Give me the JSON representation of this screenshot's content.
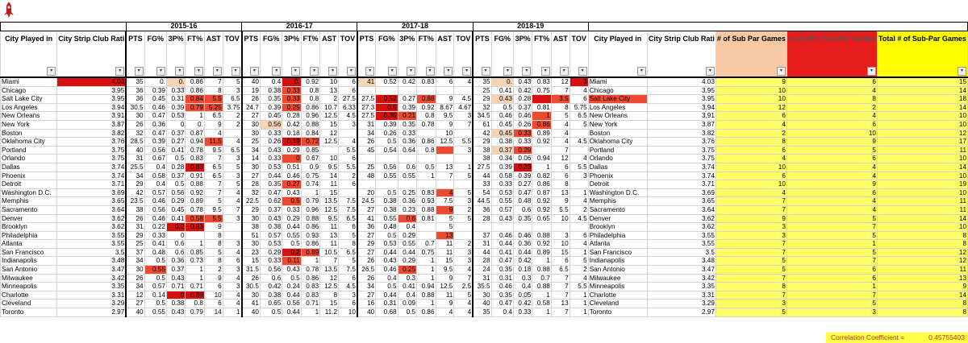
{
  "logo": {
    "icon": "rockets-logo-icon",
    "color": "#c4161c"
  },
  "seasons": [
    "2015-16",
    "2016-17",
    "2017-18",
    "2018-19"
  ],
  "headers": {
    "city": "City Played in",
    "strip": "City Strip Club Rati",
    "pts": "PTS",
    "fg": "FG%",
    "p3": "3P%",
    "ft": "FT%",
    "ast": "AST",
    "tov": "TOV",
    "city2": "City Played in",
    "strip2": "City Strip Club Rati",
    "subpar": "# of Sub Par Games",
    "pct": "% of 45% Sub-Par Games",
    "total": "Total # of Sub-Par Games"
  },
  "colors": {
    "h0": "#ffffff",
    "h1": "#f7d4b4",
    "h2": "#ee4a32",
    "h3": "#d80f0f",
    "yellow": "#ffff00",
    "peach": "#f7c9a4"
  },
  "rows": [
    [
      "Miami",
      "4.03",
      "35",
      "0.",
      "0.",
      "0.86",
      "7",
      "5",
      "40",
      "0.4",
      "0.",
      "0.92",
      "10",
      "6",
      "41",
      "0.52",
      "0.42",
      "0.83",
      "6",
      "4",
      "35",
      "0.",
      "0.43",
      "0.83",
      "12",
      "3",
      "Miami",
      "4.03",
      "9",
      "6",
      "15"
    ],
    [
      "Chicago",
      "3.95",
      "36",
      "0.39",
      "0.33",
      "0.86",
      "8",
      "3",
      "19",
      "0.38",
      "0.33",
      "0.8",
      "13",
      "6",
      "",
      "",
      "",
      "",
      "",
      "",
      "25",
      "0.41",
      "0.42",
      "0.75",
      "7",
      "4",
      "Chicago",
      "3.95",
      "10",
      "4",
      "14"
    ],
    [
      "Salt Lake City",
      "3.95",
      "36",
      "0.45",
      "0.31",
      "0.84",
      "5.5",
      "6.5",
      "26",
      "0.35",
      "0.33",
      "0.8",
      "2",
      "27.5",
      "27.5",
      "0.52",
      "0.27",
      "0.88",
      "9",
      "4.5",
      "29",
      "0.43",
      "0.28",
      "",
      "3.5",
      "6",
      "Salt Lake City",
      "3.95",
      "10",
      "8",
      "18"
    ],
    [
      "Los Angeles",
      "3.94",
      "30.5",
      "0.46",
      "0.39",
      "0.79",
      "5.25",
      "3.75",
      "24.7",
      "0.39",
      "0.25",
      "0.86",
      "10.7",
      "6.33",
      "27.3",
      "0.5",
      "0.39",
      "0.92",
      "8.67",
      "4.67",
      "32",
      "0.5",
      "0.37",
      "0.81",
      "8",
      "5.75",
      "Los Angeles",
      "3.94",
      "12",
      "2",
      "14"
    ],
    [
      "New Orleans",
      "3.91",
      "30",
      "0.47",
      "0.53",
      "1",
      "6.5",
      "2",
      "27",
      "0.45",
      "0.28",
      "0.96",
      "12.5",
      "4.5",
      "27.5",
      "0.35",
      "0.21",
      "0.8",
      "9.5",
      "3",
      "34.5",
      "0.46",
      "0.46",
      "1",
      "5",
      "6.5",
      "New Orleans",
      "3.91",
      "6",
      "4",
      "10"
    ],
    [
      "New York",
      "3.87",
      "26",
      "0.36",
      "0",
      "0.",
      "9",
      "2",
      "30",
      "0.56",
      "0.42",
      "0.88",
      "15",
      "3",
      "31",
      "0.39",
      "0.35",
      "0.78",
      "9",
      "7",
      "61",
      "0.45",
      "0.26",
      "0.86",
      "4",
      "5",
      "New York",
      "3.87",
      "4",
      "6",
      "10"
    ],
    [
      "Boston",
      "3.82",
      "32",
      "0.47",
      "0.37",
      "0.87",
      "4",
      "",
      "30",
      "0.33",
      "0.18",
      "0.84",
      "12",
      "",
      "34",
      "0.26",
      "0.33",
      "",
      "10",
      "",
      "42",
      "0.45",
      "0.33",
      "0.89",
      "4",
      "",
      "Boston",
      "3.82",
      "2",
      "10",
      "12"
    ],
    [
      "Oklahoma City",
      "3.76",
      "28.5",
      "0.39",
      "0.27",
      "0.94",
      "11.5",
      "4",
      "25",
      "0.26",
      "0.19",
      "0.72",
      "12.5",
      "4",
      "26",
      "0.5",
      "0.36",
      "0.86",
      "12.5",
      "5.5",
      "29",
      "0.38",
      "0.33",
      "0.92",
      "4",
      "4.5",
      "Oklahoma City",
      "3.76",
      "8",
      "9",
      "17"
    ],
    [
      "Portland",
      "3.75",
      "40",
      "0.56",
      "0.41",
      "0.78",
      "9.5",
      "6.5",
      "34",
      "0.43",
      "0.29",
      "0.85",
      "",
      "5.5",
      "45",
      "0.54",
      "0.64",
      "0.8",
      "",
      "3",
      "38",
      "0.37",
      "0.29",
      "",
      "7",
      "",
      "Portland",
      "3.75",
      "6",
      "5",
      "11"
    ],
    [
      "Orlando",
      "3.75",
      "31",
      "0.67",
      "0.5",
      "0.83",
      "7",
      "3",
      "14",
      "0.33",
      "0",
      "0.67",
      "10",
      "6",
      "",
      "",
      "",
      "",
      "",
      "",
      "38",
      "0.34",
      "0.06",
      "0.94",
      "12",
      "4",
      "Orlando",
      "3.75",
      "4",
      "6",
      "10"
    ],
    [
      "Dallas",
      "3.74",
      "25.5",
      "0.4",
      "0.28",
      "0.83",
      "6.5",
      "5",
      "30",
      "0.53",
      "0.51",
      "0.9",
      "9.5",
      "5.5",
      "25",
      "0.56",
      "0.6",
      "0.5",
      "13",
      "1",
      "27.5",
      "0.39",
      "0.23",
      "1",
      "6",
      "5.5",
      "Dallas",
      "3.74",
      "10",
      "4",
      "14"
    ],
    [
      "Phoenix",
      "3.74",
      "34",
      "0.58",
      "0.37",
      "0.91",
      "6.5",
      "3",
      "27",
      "0.44",
      "0.46",
      "0.75",
      "14",
      "2",
      "48",
      "0.55",
      "0.55",
      "1",
      "7",
      "5",
      "44",
      "0.58",
      "0.39",
      "0.82",
      "6",
      "3",
      "Phoenix",
      "3.74",
      "6",
      "4",
      "10"
    ],
    [
      "Detroit",
      "3.71",
      "29",
      "0.4",
      "0.5",
      "0.88",
      "7",
      "5",
      "28",
      "0.35",
      "0.27",
      "0.74",
      "11",
      "6",
      "",
      "",
      "",
      "",
      "",
      "",
      "33",
      "0.33",
      "0.27",
      "0.86",
      "8",
      "",
      "Detroit",
      "3.71",
      "10",
      "9",
      "19"
    ],
    [
      "Washington D.C.",
      "3.69",
      "42",
      "0.57",
      "0.56",
      "0.92",
      "7",
      "4",
      "32",
      "0.47",
      "0.43",
      "1",
      "15",
      "",
      "20",
      "0.5",
      "0.25",
      "0.83",
      "4",
      "5",
      "54",
      "0.53",
      "0.47",
      "0.87",
      "13",
      "1",
      "Washington D.C.",
      "3.69",
      "4",
      "6",
      "10"
    ],
    [
      "Memphis",
      "3.65",
      "23.5",
      "0.46",
      "0.29",
      "0.89",
      "5",
      "4",
      "22.5",
      "0.62",
      "0.5",
      "0.79",
      "13.5",
      "7.5",
      "24.5",
      "0.38",
      "0.36",
      "0.93",
      "7.5",
      "3",
      "44.5",
      "0.55",
      "0.48",
      "0.92",
      "9",
      "4",
      "Memphis",
      "3.65",
      "7",
      "4",
      "11"
    ],
    [
      "Sacramento",
      "3.64",
      "38",
      "0.56",
      "0.45",
      "0.78",
      "9.5",
      "7",
      "29",
      "0.37",
      "0.33",
      "0.96",
      "12.5",
      "7.5",
      "27",
      "0.38",
      "0.23",
      "0.88",
      "9",
      "2",
      "36",
      "0.57",
      "0.6",
      "0.92",
      "5.5",
      "2",
      "Sacramento",
      "3.64",
      "7",
      "4",
      "11"
    ],
    [
      "Denver",
      "3.62",
      "26",
      "0.46",
      "0.41",
      "0.58",
      "5.5",
      "3",
      "30",
      "0.43",
      "0.29",
      "0.88",
      "9.5",
      "6.5",
      "41",
      "0.55",
      "0.6",
      "0.81",
      "5",
      "5",
      "28",
      "0.43",
      "0.35",
      "0.65",
      "10",
      "4.5",
      "Denver",
      "3.62",
      "9",
      "5",
      "14"
    ],
    [
      "Brooklyn",
      "3.62",
      "31",
      "0.22",
      "0.2",
      "0.83",
      "9",
      "",
      "38",
      "0.38",
      "0.44",
      "0.86",
      "11",
      "6",
      "36",
      "0.48",
      "0.4",
      "",
      "5",
      "",
      "",
      "",
      "",
      "",
      "",
      "",
      "Brooklyn",
      "3.62",
      "3",
      "7",
      "10"
    ],
    [
      "Philadelphia",
      "3.55",
      "29",
      "0.33",
      "0",
      "",
      "8",
      "",
      "51",
      "0.57",
      "0.55",
      "0.93",
      "13",
      "5",
      "27",
      "0.5",
      "0.29",
      "",
      "13",
      "",
      "37",
      "0.46",
      "0.46",
      "0.88",
      "3",
      "6",
      "Philadelphia",
      "3.55",
      "3",
      "5",
      "8"
    ],
    [
      "Atlanta",
      "3.55",
      "25",
      "0.41",
      "0.6",
      "1",
      "8",
      "3",
      "30",
      "0.53",
      "0.5",
      "0.86",
      "11",
      "8",
      "29",
      "0.53",
      "0.55",
      "0.7",
      "11",
      "2",
      "31",
      "0.44",
      "0.36",
      "0.92",
      "10",
      "4",
      "Atlanta",
      "3.55",
      "7",
      "1",
      "8"
    ],
    [
      "San Francisco",
      "3.5",
      "37",
      "0.48",
      "0.6",
      "0.85",
      "5",
      "4",
      "23",
      "0.29",
      "0.2",
      "0.89",
      "10.5",
      "6.5",
      "27",
      "0.44",
      "0.44",
      "0.75",
      "11",
      "3",
      "44",
      "0.41",
      "0.44",
      "0.89",
      "15",
      "1",
      "San Francisco",
      "3.5",
      "7",
      "5",
      "12"
    ],
    [
      "Indianapolis",
      "3.48",
      "34",
      "0.5",
      "0.36",
      "0.73",
      "8",
      "6",
      "15",
      "0.33",
      "0.11",
      "1",
      "7",
      "5",
      "26",
      "0.43",
      "0.29",
      "1",
      "15",
      "3",
      "28",
      "0.47",
      "0.42",
      "1",
      "6",
      "5",
      "Indianapolis",
      "3.48",
      "5",
      "7",
      "12"
    ],
    [
      "San Antonio",
      "3.47",
      "30",
      "0.55",
      "0.37",
      "1",
      "2",
      "3",
      "31.5",
      "0.56",
      "0.43",
      "0.78",
      "13.5",
      "7.5",
      "26.5",
      "0.46",
      "0.25",
      "1",
      "9.5",
      "4",
      "24",
      "0.35",
      "0.18",
      "0.88",
      "6.5",
      "2",
      "San Antonio",
      "3.47",
      "5",
      "6",
      "11"
    ],
    [
      "Milwaukee",
      "3.42",
      "26",
      "0.5",
      "0.43",
      "1",
      "9",
      "4",
      "26",
      "0.6",
      "0.5",
      "0.86",
      "12",
      "6",
      "26",
      "0.4",
      "0.3",
      "1",
      "9",
      "7",
      "31",
      "0.31",
      "0.3",
      "0.7",
      "7",
      "4",
      "Milwaukee",
      "3.42",
      "7",
      "6",
      "13"
    ],
    [
      "Minneapolis",
      "3.35",
      "34",
      "0.57",
      "0.71",
      "0.71",
      "6",
      "3",
      "30.5",
      "0.42",
      "0.24",
      "0.83",
      "12.5",
      "4.5",
      "34",
      "0.5",
      "0.41",
      "0.94",
      "12.5",
      "2.5",
      "35.5",
      "0.46",
      "0.4",
      "0.88",
      "7",
      "5.5",
      "Minneapolis",
      "3.35",
      "8",
      "1",
      "9"
    ],
    [
      "Charlotte",
      "3.31",
      "12",
      "0.14",
      "0",
      "0.89",
      "10",
      "4",
      "30",
      "0.38",
      "0.44",
      "0.83",
      "8",
      "3",
      "27",
      "0.44",
      "0.4",
      "0.88",
      "11",
      "5",
      "30",
      "0.35",
      "0.05",
      "1",
      "7",
      "1",
      "Charlotte",
      "3.31",
      "7",
      "7",
      "14"
    ],
    [
      "Cleveland",
      "3.29",
      "27",
      "0.5",
      "0.38",
      "0.8",
      "6",
      "4",
      "41",
      "0.65",
      "0.56",
      "0.71",
      "15",
      "6",
      "16",
      "0.31",
      "0.09",
      "1",
      "9",
      "4",
      "40",
      "0.47",
      "0.42",
      "0.58",
      "13",
      "1",
      "Cleveland",
      "3.29",
      "3",
      "5",
      "8"
    ],
    [
      "Toronto",
      "2.97",
      "40",
      "0.55",
      "0.43",
      "0.79",
      "14",
      "1",
      "40",
      "0.5",
      "0.44",
      "1",
      "11.2",
      "10",
      "40",
      "0.68",
      "0.5",
      "0.86",
      "4",
      "4",
      "35",
      "0.4",
      "0.33",
      "1",
      "7",
      "1",
      "Toronto",
      "2.97",
      "5",
      "3",
      "8"
    ]
  ],
  "heat": [
    "0300100000300010000001000300000",
    "0000000000200000000000000000000",
    "0000022000200003020001032020000",
    "0000022000200003000000000000000",
    "0000000000000003200000020000000",
    "0000000001000000000000020000000",
    "0000000000000000000001200000000",
    "0000002000320000000000000000000",
    "0000000000000000002001200000000",
    "0000000000200000000000000000000",
    "0000030000000000000000300000000",
    "0000000000000000000000000000000",
    "0000000000200000000000000000000",
    "0000000000000000002000000000000",
    "0000000000200000000000000000000",
    "0000000000000000002000000000000",
    "0000022000000000200000000000000",
    "0000330000000000000000000000000",
    "0000000000000000002000000000000",
    "0000000000000000000000000000000",
    "0000000000320000000000000000000",
    "0000000000200000000000000000000",
    "0002000000000000200000000000000",
    "0000000000000000000000000000000",
    "0000000000000000000000000000000",
    "0000330000000000000000000000000",
    "0000000000000000000000000000000",
    "0000000000000000000000000000000"
  ],
  "footer": {
    "label": "Correlation Coefficient =",
    "value": "0.45755403"
  }
}
